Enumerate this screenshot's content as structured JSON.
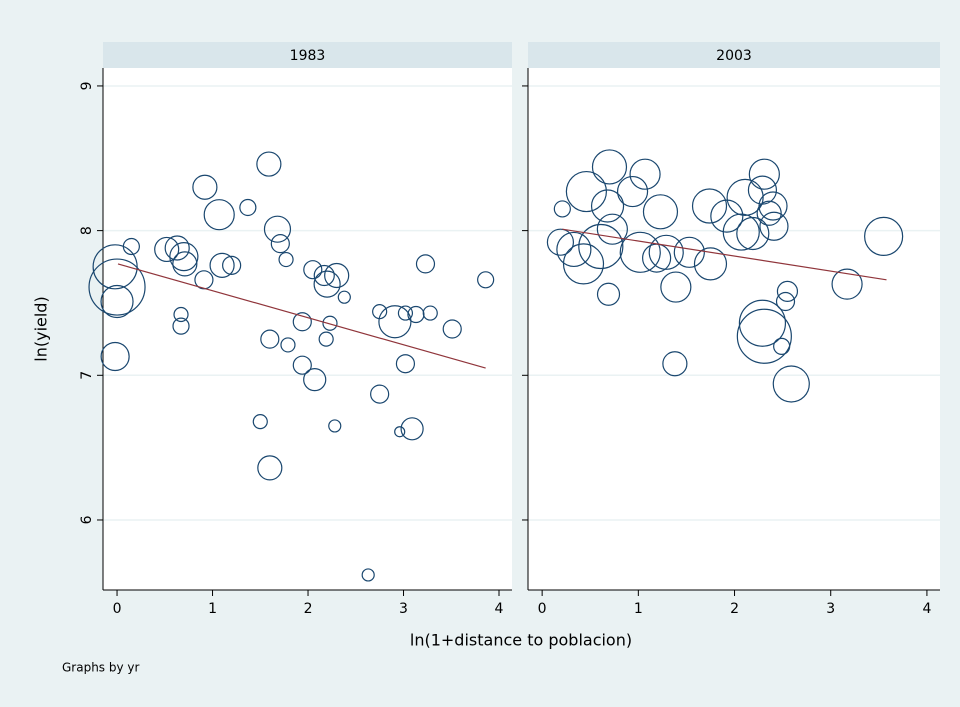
{
  "chart_data": {
    "type": "scatter",
    "xlabel": "ln(1+distance to poblacion)",
    "ylabel": "ln(yield)",
    "note": "Graphs by yr",
    "xlim": [
      -0.147,
      4.136
    ],
    "xticks": [
      0,
      1,
      2,
      3,
      4
    ],
    "ylim": [
      5.516,
      9.124
    ],
    "yticks": [
      6,
      7,
      8,
      9
    ],
    "grid": true,
    "marker_color": "#1a476f",
    "fit_color": "#90353b",
    "panels": [
      {
        "title": "1983",
        "x": [
          0,
          0,
          -0.02,
          -0.02,
          0.15,
          0.52,
          0.63,
          0.7,
          0.71,
          0.67,
          0.67,
          0.92,
          0.91,
          1.07,
          1.1,
          1.2,
          1.37,
          1.59,
          1.68,
          1.71,
          1.77,
          1.6,
          1.79,
          1.94,
          1.94,
          2.07,
          2.05,
          2.17,
          2.2,
          2.3,
          2.19,
          2.23,
          2.38,
          2.28,
          1.5,
          1.6,
          2.63,
          2.75,
          2.75,
          2.91,
          3.02,
          2.96,
          3.09,
          3.13,
          3.28,
          3.23,
          3.02,
          3.51,
          3.86
        ],
        "values": [
          7.61,
          7.51,
          7.75,
          7.13,
          7.89,
          7.87,
          7.88,
          7.82,
          7.77,
          7.42,
          7.34,
          8.3,
          7.66,
          8.11,
          7.76,
          7.76,
          8.16,
          8.46,
          8.01,
          7.91,
          7.8,
          7.25,
          7.21,
          7.37,
          7.07,
          6.97,
          7.73,
          7.69,
          7.63,
          7.69,
          7.25,
          7.36,
          7.54,
          6.65,
          6.68,
          6.36,
          5.62,
          7.44,
          6.87,
          7.37,
          7.43,
          6.61,
          6.63,
          7.42,
          7.43,
          7.77,
          7.08,
          7.32,
          7.66
        ],
        "sizes": [
          28,
          16,
          22,
          14,
          8,
          12,
          12,
          14,
          12,
          7,
          8,
          12,
          9,
          15,
          12,
          9,
          8,
          12,
          13,
          9,
          7,
          9,
          7,
          9,
          9,
          11,
          9,
          10,
          13,
          12,
          7,
          7,
          6,
          6,
          7,
          12,
          6,
          7,
          9,
          16,
          7,
          5,
          11,
          8,
          7,
          9,
          9,
          9,
          8
        ],
        "fit": {
          "x": [
            0.01,
            3.86
          ],
          "values": [
            7.77,
            7.05
          ]
        }
      },
      {
        "title": "2003",
        "x": [
          0.21,
          0.19,
          0.33,
          0.43,
          0.46,
          0.61,
          0.7,
          0.68,
          0.73,
          0.69,
          0.94,
          1.07,
          1.02,
          1.19,
          1.23,
          1.29,
          1.39,
          1.38,
          1.53,
          1.75,
          1.74,
          1.92,
          2.07,
          2.11,
          2.19,
          2.31,
          2.29,
          2.36,
          2.41,
          2.4,
          2.31,
          2.29,
          2.49,
          2.53,
          2.55,
          2.59,
          3.17,
          3.55
        ],
        "values": [
          8.15,
          7.92,
          7.87,
          7.77,
          8.27,
          7.89,
          8.44,
          8.17,
          8.01,
          7.56,
          8.27,
          8.39,
          7.85,
          7.81,
          8.13,
          7.85,
          7.61,
          7.08,
          7.85,
          7.77,
          8.17,
          8.1,
          7.99,
          8.23,
          7.98,
          8.39,
          8.28,
          8.12,
          8.03,
          8.17,
          7.27,
          7.36,
          7.2,
          7.51,
          7.58,
          6.94,
          7.63,
          7.96
        ],
        "sizes": [
          8,
          13,
          17,
          20,
          20,
          22,
          17,
          16,
          15,
          11,
          15,
          15,
          20,
          14,
          17,
          17,
          15,
          12,
          15,
          16,
          17,
          16,
          18,
          18,
          16,
          15,
          14,
          12,
          14,
          14,
          27,
          23,
          8,
          9,
          10,
          18,
          15,
          19
        ],
        "fit": {
          "x": [
            0.21,
            3.58
          ],
          "values": [
            8.01,
            7.66
          ]
        }
      }
    ]
  }
}
